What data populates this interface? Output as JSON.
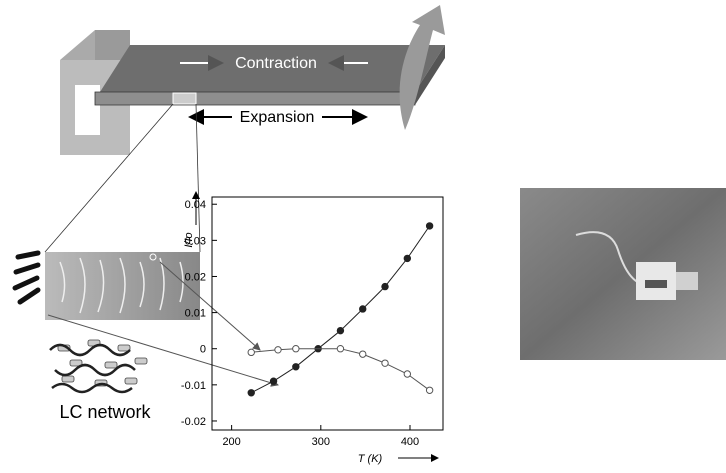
{
  "diagram": {
    "labels": {
      "contraction": "Contraction",
      "expansion": "Expansion",
      "network": "LC network"
    }
  },
  "chart_data": {
    "type": "line",
    "y_label": "I/Io",
    "x_label": "T (K)",
    "xlim": [
      178,
      437
    ],
    "ylim": [
      -0.0225,
      0.042
    ],
    "xticks": [
      200,
      300,
      400
    ],
    "yticks": [
      -0.02,
      -0.01,
      0,
      0.01,
      0.02,
      0.03,
      0.04
    ],
    "series": [
      {
        "color": "#222222",
        "marker": "filled",
        "x": [
          222,
          247,
          272,
          297,
          322,
          347,
          372,
          397,
          422
        ],
        "values": [
          -0.0122,
          -0.009,
          -0.005,
          0,
          0.005,
          0.011,
          0.0172,
          0.025,
          0.034
        ]
      },
      {
        "color": "#555555",
        "marker": "open",
        "x": [
          222,
          252,
          272,
          322,
          347,
          372,
          397,
          422
        ],
        "values": [
          -0.001,
          -0.0003,
          0,
          0,
          -0.0015,
          -0.004,
          -0.007,
          -0.0115
        ]
      }
    ]
  }
}
